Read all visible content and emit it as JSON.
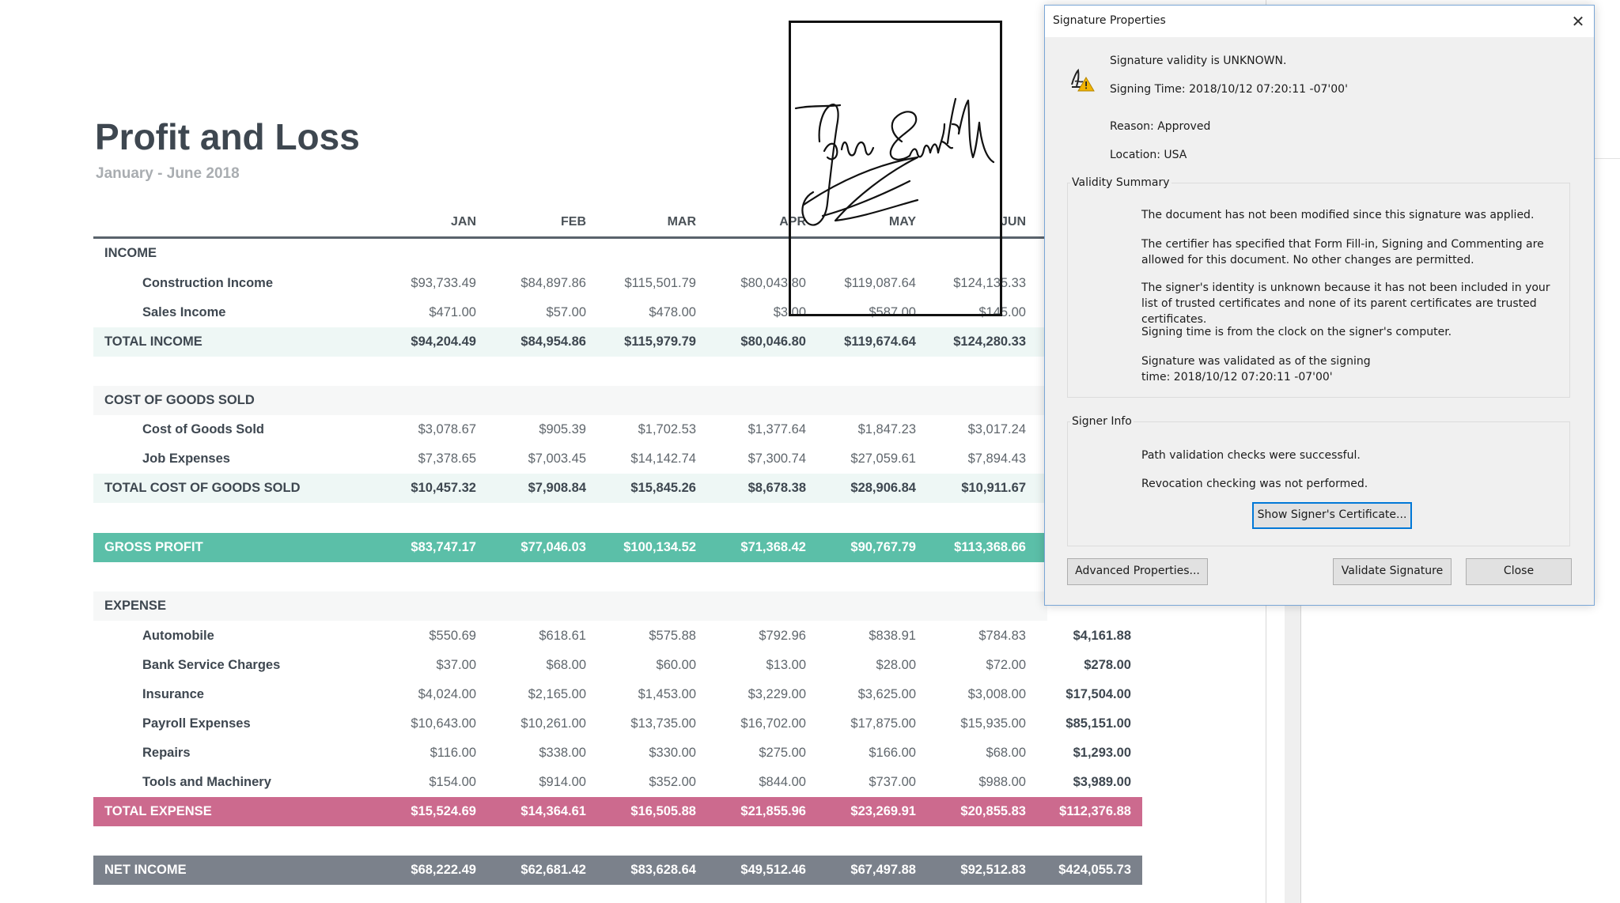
{
  "report": {
    "title": "Profit and Loss",
    "subtitle": "January - June 2018",
    "columns": [
      "JAN",
      "FEB",
      "MAR",
      "APR",
      "MAY",
      "JUN"
    ],
    "rows": [
      {
        "label": "INCOME",
        "kind": "section",
        "values": []
      },
      {
        "label": "Construction Income",
        "kind": "item",
        "values": [
          "$93,733.49",
          "$84,897.86",
          "$115,501.79",
          "$80,043.80",
          "$119,087.64",
          "$124,135.33"
        ]
      },
      {
        "label": "Sales Income",
        "kind": "item",
        "values": [
          "$471.00",
          "$57.00",
          "$478.00",
          "$3.00",
          "$587.00",
          "$145.00"
        ]
      },
      {
        "label": "TOTAL INCOME",
        "kind": "total",
        "values": [
          "$94,204.49",
          "$84,954.86",
          "$115,979.79",
          "$80,046.80",
          "$119,674.64",
          "$124,280.33"
        ]
      },
      {
        "label": "COST OF GOODS SOLD",
        "kind": "section",
        "values": []
      },
      {
        "label": "Cost of Goods Sold",
        "kind": "item",
        "values": [
          "$3,078.67",
          "$905.39",
          "$1,702.53",
          "$1,377.64",
          "$1,847.23",
          "$3,017.24"
        ]
      },
      {
        "label": "Job Expenses",
        "kind": "item",
        "values": [
          "$7,378.65",
          "$7,003.45",
          "$14,142.74",
          "$7,300.74",
          "$27,059.61",
          "$7,894.43"
        ]
      },
      {
        "label": "TOTAL COST OF GOODS SOLD",
        "kind": "total",
        "values": [
          "$10,457.32",
          "$7,908.84",
          "$15,845.26",
          "$8,678.38",
          "$28,906.84",
          "$10,911.67"
        ]
      },
      {
        "label": "GROSS PROFIT",
        "kind": "gross",
        "values": [
          "$83,747.17",
          "$77,046.03",
          "$100,134.52",
          "$71,368.42",
          "$90,767.79",
          "$113,368.66"
        ]
      },
      {
        "label": "EXPENSE",
        "kind": "section",
        "values": []
      },
      {
        "label": "Automobile",
        "kind": "item",
        "values": [
          "$550.69",
          "$618.61",
          "$575.88",
          "$792.96",
          "$838.91",
          "$784.83",
          "$4,161.88"
        ]
      },
      {
        "label": "Bank Service Charges",
        "kind": "item",
        "values": [
          "$37.00",
          "$68.00",
          "$60.00",
          "$13.00",
          "$28.00",
          "$72.00",
          "$278.00"
        ]
      },
      {
        "label": "Insurance",
        "kind": "item",
        "values": [
          "$4,024.00",
          "$2,165.00",
          "$1,453.00",
          "$3,229.00",
          "$3,625.00",
          "$3,008.00",
          "$17,504.00"
        ]
      },
      {
        "label": "Payroll Expenses",
        "kind": "item",
        "values": [
          "$10,643.00",
          "$10,261.00",
          "$13,735.00",
          "$16,702.00",
          "$17,875.00",
          "$15,935.00",
          "$85,151.00"
        ]
      },
      {
        "label": "Repairs",
        "kind": "item",
        "values": [
          "$116.00",
          "$338.00",
          "$330.00",
          "$275.00",
          "$166.00",
          "$68.00",
          "$1,293.00"
        ]
      },
      {
        "label": "Tools and Machinery",
        "kind": "item",
        "values": [
          "$154.00",
          "$914.00",
          "$352.00",
          "$844.00",
          "$737.00",
          "$988.00",
          "$3,989.00"
        ]
      },
      {
        "label": "TOTAL EXPENSE",
        "kind": "expense",
        "values": [
          "$15,524.69",
          "$14,364.61",
          "$16,505.88",
          "$21,855.96",
          "$23,269.91",
          "$20,855.83",
          "$112,376.88"
        ]
      },
      {
        "label": "NET INCOME",
        "kind": "net",
        "values": [
          "$68,222.49",
          "$62,681.42",
          "$83,628.64",
          "$49,512.46",
          "$67,497.88",
          "$92,512.83",
          "$424,055.73"
        ]
      }
    ]
  },
  "dialog": {
    "title": "Signature Properties",
    "close_glyph": "✕",
    "validity": "Signature validity is UNKNOWN.",
    "signing_time": "Signing Time:  2018/10/12 07:20:11 -07'00'",
    "reason": "Reason:  Approved",
    "location": "Location:  USA",
    "validity_summary": {
      "legend": "Validity Summary",
      "lines": [
        "The document has not been modified since this signature was applied.",
        "The certifier has specified that Form Fill-in, Signing and Commenting are allowed for this document. No other changes are permitted.",
        "The signer's identity is unknown because it has not been included in your list of trusted certificates and none of its parent certificates are trusted certificates.",
        "Signing time is from the clock on the signer's computer.",
        "Signature was validated as of the signing time: 2018/10/12 07:20:11 -07'00'"
      ]
    },
    "signer_info": {
      "legend": "Signer Info",
      "lines": [
        "Path validation checks were successful.",
        "Revocation checking was not performed."
      ],
      "show_cert_button": "Show Signer's Certificate..."
    },
    "buttons": {
      "advanced": "Advanced Properties...",
      "validate": "Validate Signature",
      "close": "Close"
    },
    "icon": "signature-warning-icon"
  },
  "colors": {
    "gross_profit": "#5bbfa8",
    "total_expense": "#cc6a8e",
    "net_income": "#7b818b",
    "focus_accent": "#0078d7"
  }
}
